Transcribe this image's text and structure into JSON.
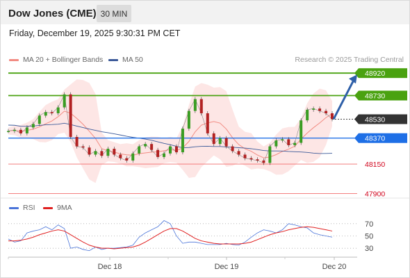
{
  "header": {
    "title": "Dow Jones (CME)",
    "timeframe": "30 MIN"
  },
  "timestamp": "Friday, December 19, 2025 9:30:31 PM CET",
  "legend": [
    {
      "label": "MA 20 + Bollinger Bands",
      "color": "#f28b82"
    },
    {
      "label": "MA 50",
      "color": "#3c5a99"
    }
  ],
  "credit": "Research © 2025 Trading Central",
  "rsi_legend": [
    {
      "label": "RSI",
      "color": "#4a74d9"
    },
    {
      "label": "9MA",
      "color": "#e02020"
    }
  ],
  "chart_data": [
    {
      "type": "line",
      "panel": "price",
      "series": [
        {
          "name": "Price",
          "values": [
            48430,
            48440,
            48410,
            48460,
            48490,
            48560,
            48590,
            48580,
            48630,
            48740,
            48380,
            48300,
            48290,
            48230,
            48260,
            48220,
            48280,
            48230,
            48200,
            48180,
            48240,
            48300,
            48320,
            48270,
            48210,
            48240,
            48300,
            48250,
            48450,
            48600,
            48700,
            48580,
            48410,
            48320,
            48370,
            48300,
            48260,
            48230,
            48200,
            48190,
            48180,
            48160,
            48300,
            48350,
            48360,
            48310,
            48330,
            48520,
            48610,
            48620,
            48600,
            48580,
            48530
          ]
        }
      ],
      "levels": [
        {
          "value": 48920,
          "label": "48920",
          "kind": "resistance"
        },
        {
          "value": 48730,
          "label": "48730",
          "kind": "resistance"
        },
        {
          "value": 48530,
          "label": "48530",
          "kind": "last"
        },
        {
          "value": 48370,
          "label": "48370",
          "kind": "pivot"
        },
        {
          "value": 48150,
          "label": "48150",
          "kind": "support"
        },
        {
          "value": 47900,
          "label": "47900",
          "kind": "support"
        }
      ],
      "x_ticks": [
        "Dec 18",
        "Dec 19",
        "Dec 20"
      ],
      "ylim": [
        47880,
        48980
      ],
      "grid": false
    },
    {
      "type": "line",
      "panel": "rsi",
      "series": [
        {
          "name": "RSI",
          "values": [
            45,
            40,
            42,
            55,
            58,
            60,
            65,
            60,
            68,
            62,
            30,
            32,
            28,
            26,
            32,
            28,
            30,
            30,
            31,
            32,
            35,
            48,
            55,
            60,
            65,
            75,
            70,
            50,
            38,
            40,
            40,
            38,
            36,
            36,
            36,
            38,
            36,
            35,
            40,
            48,
            55,
            60,
            58,
            55,
            60,
            70,
            68,
            65,
            63,
            55,
            52,
            50,
            48
          ]
        },
        {
          "name": "9MA",
          "values": [
            42,
            42,
            43,
            45,
            48,
            52,
            55,
            58,
            60,
            58,
            52,
            46,
            40,
            35,
            32,
            30,
            30,
            29,
            30,
            31,
            32,
            35,
            40,
            46,
            52,
            58,
            62,
            62,
            58,
            52,
            46,
            42,
            40,
            38,
            37,
            37,
            37,
            37,
            38,
            40,
            44,
            48,
            52,
            55,
            57,
            60,
            62,
            64,
            65,
            64,
            62,
            60,
            58
          ]
        }
      ],
      "y_ticks": [
        70,
        50,
        30
      ],
      "ylim": [
        20,
        80
      ]
    }
  ]
}
